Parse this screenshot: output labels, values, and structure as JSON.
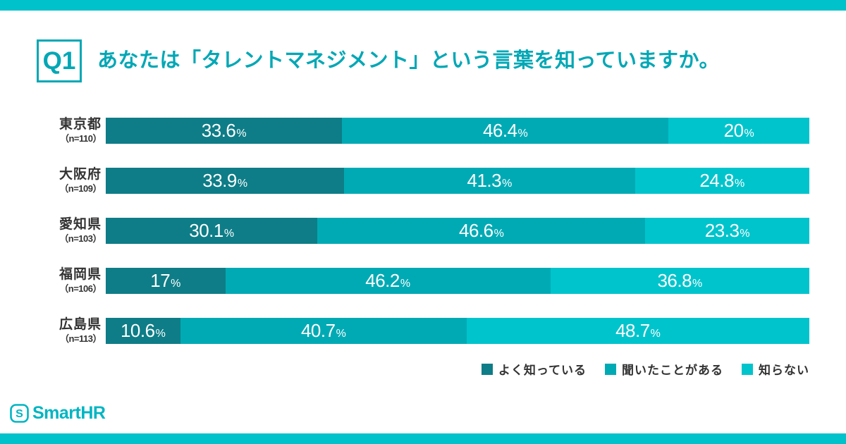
{
  "frame": {
    "accent_color": "#00c2cb"
  },
  "header": {
    "q_label": "Q1",
    "title": "あなたは「タレントマネジメント」という言葉を知っていますか。",
    "accent_color": "#00a7b5"
  },
  "chart_data": {
    "type": "bar",
    "orientation": "horizontal-stacked",
    "unit": "%",
    "xlim": [
      0,
      100
    ],
    "grid": false,
    "categories": [
      "東京都",
      "大阪府",
      "愛知県",
      "福岡県",
      "広島県"
    ],
    "sample_labels": [
      "（n=110）",
      "（n=109）",
      "（n=103）",
      "（n=106）",
      "（n=113）"
    ],
    "sample_sizes": [
      110,
      109,
      103,
      106,
      113
    ],
    "series": [
      {
        "name": "よく知っている",
        "color": "#0e7d87",
        "values": [
          33.6,
          33.9,
          30.1,
          17,
          10.6
        ]
      },
      {
        "name": "聞いたことがある",
        "color": "#00aab4",
        "values": [
          46.4,
          41.3,
          46.6,
          46.2,
          40.7
        ]
      },
      {
        "name": "知らない",
        "color": "#00c4cc",
        "values": [
          20,
          24.8,
          23.3,
          36.8,
          48.7
        ]
      }
    ],
    "value_label_suffix": "%",
    "legend_position": "bottom-right",
    "bar_text_color": "#ffffff",
    "label_text_color": "#333333"
  },
  "footer": {
    "logo_text": "SmartHR",
    "logo_color": "#00b5c2"
  }
}
